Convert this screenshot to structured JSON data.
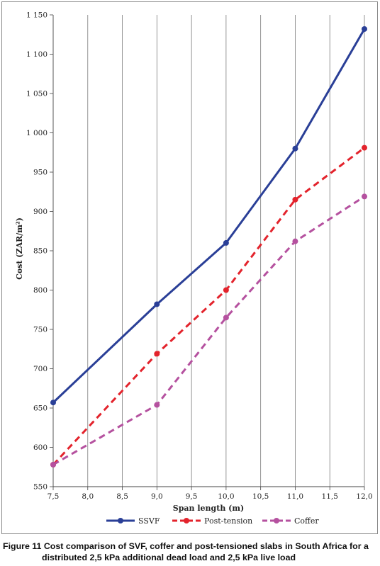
{
  "chart_data": {
    "type": "line",
    "ylabel": "Cost (ZAR/m²)",
    "xlabel": "Span length (m)",
    "xlim": [
      7.5,
      12.0
    ],
    "ylim": [
      550,
      1150
    ],
    "xticks": [
      "7,5",
      "8,0",
      "8,5",
      "9,0",
      "9,5",
      "10,0",
      "10,5",
      "11,0",
      "11,5",
      "12,0"
    ],
    "yticks": [
      "550",
      "600",
      "650",
      "700",
      "750",
      "800",
      "850",
      "900",
      "950",
      "1 000",
      "1 050",
      "1 100",
      "1 150"
    ],
    "grid": "vertical",
    "legend_position": "bottom",
    "series": [
      {
        "name": "SSVF",
        "color": "#2a3f97",
        "style": "solid",
        "x": [
          7.5,
          9.0,
          10.0,
          11.0,
          12.0
        ],
        "y": [
          657,
          782,
          860,
          980,
          1132
        ]
      },
      {
        "name": "Post-tension",
        "color": "#e3232c",
        "style": "dashed",
        "x": [
          7.5,
          9.0,
          10.0,
          11.0,
          12.0
        ],
        "y": [
          578,
          719,
          800,
          915,
          981
        ]
      },
      {
        "name": "Coffer",
        "color": "#b5519f",
        "style": "dashed",
        "x": [
          7.5,
          9.0,
          10.0,
          11.0,
          12.0
        ],
        "y": [
          578,
          654,
          765,
          862,
          919
        ]
      }
    ]
  },
  "caption": {
    "label": "Figure 11",
    "line1": "Cost comparison of SVF, coffer and post-tensioned slabs in South Africa for a",
    "line2": "distributed 2,5 kPa additional dead load and 2,5 kPa live load"
  }
}
